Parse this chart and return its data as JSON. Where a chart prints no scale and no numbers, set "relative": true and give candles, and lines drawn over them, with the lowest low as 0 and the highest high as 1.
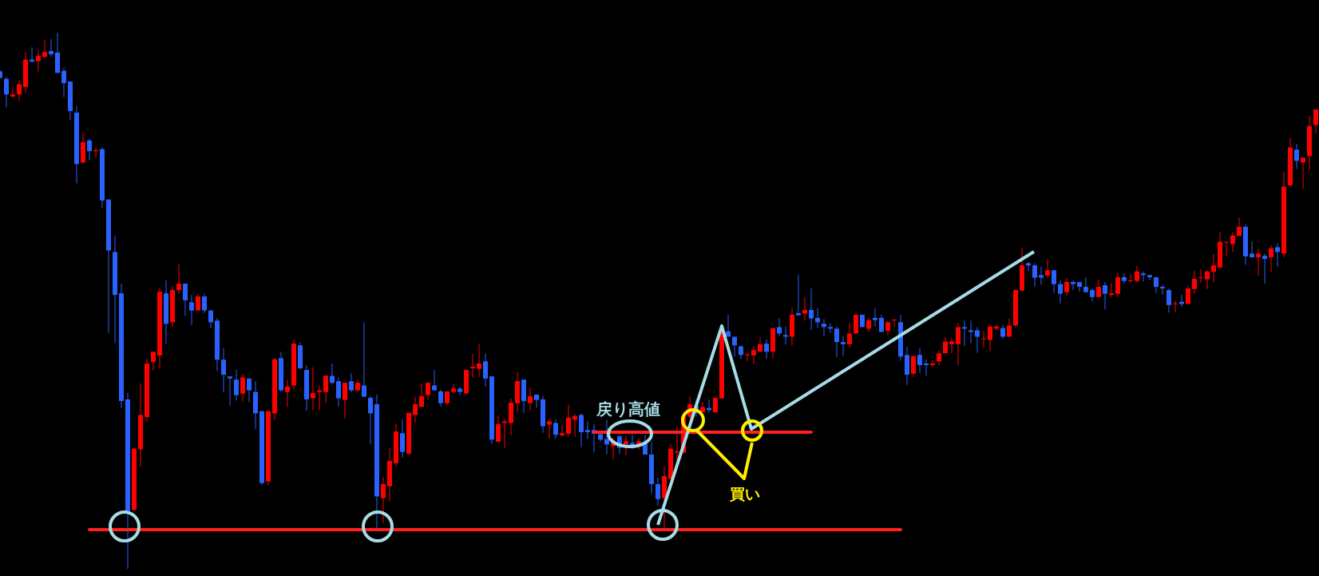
{
  "chart_data": {
    "type": "candlestick",
    "relative": true,
    "categories": [
      null,
      null,
      null,
      null,
      null,
      null,
      null,
      null,
      null,
      null,
      null,
      null,
      null,
      null,
      null,
      null,
      null,
      null,
      null,
      null,
      null,
      null,
      null,
      null,
      null,
      null,
      null,
      null,
      null,
      null,
      null,
      null,
      null,
      null,
      null,
      null,
      null,
      null,
      null,
      null,
      null,
      null,
      null,
      null,
      null,
      null,
      null,
      null,
      null,
      null,
      null,
      null,
      null,
      null,
      null,
      null,
      null,
      null,
      null,
      null,
      null,
      null,
      null,
      null,
      null,
      null,
      null,
      null,
      null,
      null,
      null,
      null,
      null,
      null,
      null,
      null,
      null,
      null,
      null,
      null,
      null,
      null,
      null,
      null,
      null,
      null,
      null,
      null,
      null,
      null,
      null,
      null,
      null,
      null,
      null,
      null,
      null,
      null,
      null,
      null,
      null,
      null,
      null,
      null,
      null,
      null,
      null,
      null,
      null,
      null,
      null,
      null,
      null,
      null,
      null,
      null,
      null,
      null,
      null,
      null,
      null,
      null,
      null,
      null,
      null,
      null,
      null,
      null,
      null,
      null,
      null,
      null,
      null,
      null,
      null,
      null,
      null,
      null,
      null,
      null,
      null,
      null,
      null,
      null,
      null,
      null,
      null,
      null,
      null,
      null,
      null,
      null,
      null,
      null,
      null,
      null,
      null,
      null,
      null,
      null,
      null,
      null,
      null,
      null,
      null,
      null,
      null,
      null,
      null,
      null,
      null,
      null,
      null,
      null,
      null,
      null,
      null,
      null,
      null,
      null,
      null,
      null,
      null,
      null,
      null,
      null,
      null,
      null,
      null,
      null,
      null,
      null,
      null,
      null,
      null,
      null,
      null,
      null,
      null,
      null,
      null,
      null,
      null,
      null,
      null,
      null,
      null
    ],
    "ohlc": [
      [
        0.928,
        0.931,
        0.914,
        0.916
      ],
      [
        0.914,
        0.918,
        0.861,
        0.885
      ],
      [
        0.881,
        0.899,
        0.879,
        0.885
      ],
      [
        0.885,
        0.912,
        0.873,
        0.904
      ],
      [
        0.899,
        0.964,
        0.888,
        0.95
      ],
      [
        0.95,
        0.973,
        0.945,
        0.946
      ],
      [
        0.947,
        0.968,
        0.928,
        0.957
      ],
      [
        0.955,
        0.986,
        0.953,
        0.964
      ],
      [
        0.966,
        0.988,
        0.955,
        0.96
      ],
      [
        0.963,
        1.0,
        0.925,
        0.925
      ],
      [
        0.929,
        0.935,
        0.88,
        0.906
      ],
      [
        0.909,
        0.909,
        0.837,
        0.854
      ],
      [
        0.851,
        0.863,
        0.719,
        0.755
      ],
      [
        0.758,
        0.813,
        0.755,
        0.796
      ],
      [
        0.799,
        0.802,
        0.762,
        0.779
      ],
      [
        0.779,
        0.785,
        0.767,
        0.781
      ],
      [
        0.783,
        0.786,
        0.673,
        0.687
      ],
      [
        0.689,
        0.689,
        0.44,
        0.594
      ],
      [
        0.591,
        0.621,
        0.421,
        0.511
      ],
      [
        0.514,
        0.532,
        0.3,
        0.313
      ],
      [
        0.316,
        0.328,
        0.0,
        0.108
      ],
      [
        0.11,
        0.225,
        0.108,
        0.224
      ],
      [
        0.223,
        0.346,
        0.191,
        0.287
      ],
      [
        0.283,
        0.392,
        0.274,
        0.383
      ],
      [
        0.386,
        0.405,
        0.37,
        0.405
      ],
      [
        0.398,
        0.524,
        0.373,
        0.517
      ],
      [
        0.514,
        0.538,
        0.42,
        0.457
      ],
      [
        0.46,
        0.527,
        0.451,
        0.52
      ],
      [
        0.52,
        0.568,
        0.513,
        0.532
      ],
      [
        0.532,
        0.532,
        0.472,
        0.501
      ],
      [
        0.497,
        0.511,
        0.455,
        0.482
      ],
      [
        0.482,
        0.513,
        0.482,
        0.508
      ],
      [
        0.508,
        0.513,
        0.477,
        0.482
      ],
      [
        0.482,
        0.482,
        0.449,
        0.46
      ],
      [
        0.463,
        0.468,
        0.369,
        0.39
      ],
      [
        0.39,
        0.412,
        0.329,
        0.362
      ],
      [
        0.359,
        0.359,
        0.304,
        0.355
      ],
      [
        0.353,
        0.371,
        0.314,
        0.324
      ],
      [
        0.327,
        0.364,
        0.313,
        0.357
      ],
      [
        0.355,
        0.355,
        0.311,
        0.333
      ],
      [
        0.33,
        0.35,
        0.261,
        0.29
      ],
      [
        0.294,
        0.294,
        0.156,
        0.16
      ],
      [
        0.163,
        0.295,
        0.156,
        0.294
      ],
      [
        0.29,
        0.393,
        0.278,
        0.391
      ],
      [
        0.393,
        0.405,
        0.329,
        0.333
      ],
      [
        0.33,
        0.352,
        0.302,
        0.34
      ],
      [
        0.342,
        0.427,
        0.335,
        0.42
      ],
      [
        0.417,
        0.422,
        0.372,
        0.374
      ],
      [
        0.371,
        0.379,
        0.295,
        0.316
      ],
      [
        0.318,
        0.376,
        0.296,
        0.328
      ],
      [
        0.33,
        0.342,
        0.296,
        0.333
      ],
      [
        0.33,
        0.362,
        0.309,
        0.36
      ],
      [
        0.36,
        0.383,
        0.344,
        0.347
      ],
      [
        0.35,
        0.357,
        0.303,
        0.318
      ],
      [
        0.315,
        0.348,
        0.281,
        0.347
      ],
      [
        0.35,
        0.365,
        0.329,
        0.333
      ],
      [
        0.333,
        0.352,
        0.33,
        0.347
      ],
      [
        0.342,
        0.46,
        0.321,
        0.321
      ],
      [
        0.319,
        0.322,
        0.233,
        0.29
      ],
      [
        0.307,
        0.325,
        0.076,
        0.135
      ],
      [
        0.132,
        0.171,
        0.085,
        0.158
      ],
      [
        0.154,
        0.225,
        0.126,
        0.201
      ],
      [
        0.197,
        0.271,
        0.191,
        0.256
      ],
      [
        0.253,
        0.279,
        0.208,
        0.218
      ],
      [
        0.215,
        0.291,
        0.212,
        0.291
      ],
      [
        0.287,
        0.321,
        0.272,
        0.307
      ],
      [
        0.302,
        0.345,
        0.302,
        0.322
      ],
      [
        0.324,
        0.348,
        0.315,
        0.347
      ],
      [
        0.342,
        0.371,
        0.332,
        0.333
      ],
      [
        0.331,
        0.334,
        0.303,
        0.309
      ],
      [
        0.309,
        0.331,
        0.306,
        0.331
      ],
      [
        0.33,
        0.345,
        0.327,
        0.336
      ],
      [
        0.336,
        0.34,
        0.323,
        0.33
      ],
      [
        0.327,
        0.372,
        0.327,
        0.371
      ],
      [
        0.374,
        0.401,
        0.356,
        0.377
      ],
      [
        0.373,
        0.419,
        0.358,
        0.383
      ],
      [
        0.387,
        0.402,
        0.34,
        0.355
      ],
      [
        0.359,
        0.359,
        0.233,
        0.241
      ],
      [
        0.237,
        0.286,
        0.237,
        0.27
      ],
      [
        0.272,
        0.28,
        0.226,
        0.275
      ],
      [
        0.272,
        0.318,
        0.249,
        0.31
      ],
      [
        0.309,
        0.367,
        0.293,
        0.35
      ],
      [
        0.353,
        0.353,
        0.291,
        0.313
      ],
      [
        0.309,
        0.338,
        0.296,
        0.322
      ],
      [
        0.325,
        0.325,
        0.3,
        0.315
      ],
      [
        0.316,
        0.322,
        0.254,
        0.266
      ],
      [
        0.269,
        0.28,
        0.243,
        0.275
      ],
      [
        0.272,
        0.278,
        0.243,
        0.25
      ],
      [
        0.249,
        0.268,
        0.247,
        0.253
      ],
      [
        0.252,
        0.306,
        0.247,
        0.282
      ],
      [
        0.278,
        0.289,
        0.246,
        0.285
      ],
      [
        0.287,
        0.29,
        0.227,
        0.255
      ],
      [
        0.259,
        0.275,
        0.242,
        0.255
      ],
      [
        0.259,
        0.27,
        0.217,
        0.252
      ],
      [
        0.251,
        0.256,
        0.237,
        0.241
      ],
      [
        0.242,
        0.278,
        0.214,
        0.232
      ],
      [
        0.229,
        0.244,
        0.204,
        0.237
      ],
      [
        0.247,
        0.25,
        0.214,
        0.226
      ],
      [
        0.232,
        0.248,
        0.212,
        0.238
      ],
      [
        0.235,
        0.25,
        0.223,
        0.229
      ],
      [
        0.233,
        0.243,
        0.222,
        0.238
      ],
      [
        0.237,
        0.25,
        0.213,
        0.213
      ],
      [
        0.213,
        0.237,
        0.14,
        0.158
      ],
      [
        0.158,
        0.17,
        0.118,
        0.13
      ],
      [
        0.132,
        0.191,
        0.077,
        0.173
      ],
      [
        0.168,
        0.232,
        0.167,
        0.224
      ],
      [
        0.217,
        0.266,
        0.202,
        0.219
      ],
      [
        0.217,
        0.292,
        0.214,
        0.286
      ],
      [
        0.284,
        0.321,
        0.281,
        0.307
      ],
      [
        0.304,
        0.316,
        0.284,
        0.291
      ],
      [
        0.292,
        0.312,
        0.291,
        0.302
      ],
      [
        0.3,
        0.316,
        0.291,
        0.296
      ],
      [
        0.292,
        0.32,
        0.29,
        0.319
      ],
      [
        0.318,
        0.443,
        0.318,
        0.443
      ],
      [
        0.443,
        0.474,
        0.433,
        0.433
      ],
      [
        0.433,
        0.433,
        0.396,
        0.417
      ],
      [
        0.415,
        0.417,
        0.391,
        0.399
      ],
      [
        0.399,
        0.403,
        0.387,
        0.4
      ],
      [
        0.398,
        0.416,
        0.382,
        0.408
      ],
      [
        0.405,
        0.432,
        0.405,
        0.419
      ],
      [
        0.42,
        0.428,
        0.392,
        0.405
      ],
      [
        0.405,
        0.449,
        0.392,
        0.449
      ],
      [
        0.451,
        0.468,
        0.434,
        0.439
      ],
      [
        0.436,
        0.452,
        0.418,
        0.433
      ],
      [
        0.433,
        0.488,
        0.417,
        0.474
      ],
      [
        0.477,
        0.549,
        0.472,
        0.473
      ],
      [
        0.476,
        0.507,
        0.463,
        0.483
      ],
      [
        0.483,
        0.523,
        0.446,
        0.467
      ],
      [
        0.468,
        0.486,
        0.449,
        0.46
      ],
      [
        0.457,
        0.466,
        0.434,
        0.451
      ],
      [
        0.451,
        0.458,
        0.44,
        0.448
      ],
      [
        0.448,
        0.452,
        0.395,
        0.423
      ],
      [
        0.423,
        0.434,
        0.397,
        0.419
      ],
      [
        0.419,
        0.459,
        0.413,
        0.439
      ],
      [
        0.439,
        0.475,
        0.439,
        0.474
      ],
      [
        0.474,
        0.474,
        0.45,
        0.451
      ],
      [
        0.448,
        0.469,
        0.442,
        0.464
      ],
      [
        0.468,
        0.486,
        0.452,
        0.464
      ],
      [
        0.468,
        0.474,
        0.442,
        0.442
      ],
      [
        0.444,
        0.463,
        0.436,
        0.46
      ],
      [
        0.464,
        0.466,
        0.451,
        0.465
      ],
      [
        0.46,
        0.474,
        0.388,
        0.396
      ],
      [
        0.399,
        0.414,
        0.343,
        0.362
      ],
      [
        0.364,
        0.398,
        0.358,
        0.397
      ],
      [
        0.399,
        0.412,
        0.366,
        0.38
      ],
      [
        0.383,
        0.391,
        0.36,
        0.38
      ],
      [
        0.38,
        0.39,
        0.377,
        0.383
      ],
      [
        0.387,
        0.407,
        0.38,
        0.402
      ],
      [
        0.402,
        0.432,
        0.402,
        0.424
      ],
      [
        0.419,
        0.43,
        0.402,
        0.424
      ],
      [
        0.419,
        0.459,
        0.38,
        0.451
      ],
      [
        0.451,
        0.463,
        0.416,
        0.448
      ],
      [
        0.445,
        0.463,
        0.421,
        0.442
      ],
      [
        0.445,
        0.451,
        0.403,
        0.433
      ],
      [
        0.429,
        0.444,
        0.413,
        0.43
      ],
      [
        0.427,
        0.454,
        0.406,
        0.452
      ],
      [
        0.448,
        0.456,
        0.445,
        0.452
      ],
      [
        0.449,
        0.454,
        0.429,
        0.433
      ],
      [
        0.433,
        0.467,
        0.433,
        0.454
      ],
      [
        0.454,
        0.521,
        0.451,
        0.52
      ],
      [
        0.519,
        0.599,
        0.516,
        0.566
      ],
      [
        0.57,
        0.572,
        0.555,
        0.566
      ],
      [
        0.566,
        0.57,
        0.526,
        0.543
      ],
      [
        0.548,
        0.564,
        0.53,
        0.543
      ],
      [
        0.547,
        0.577,
        0.543,
        0.557
      ],
      [
        0.557,
        0.558,
        0.515,
        0.531
      ],
      [
        0.531,
        0.538,
        0.495,
        0.513
      ],
      [
        0.516,
        0.542,
        0.51,
        0.535
      ],
      [
        0.535,
        0.538,
        0.52,
        0.531
      ],
      [
        0.535,
        0.535,
        0.517,
        0.526
      ],
      [
        0.526,
        0.544,
        0.516,
        0.516
      ],
      [
        0.52,
        0.523,
        0.499,
        0.507
      ],
      [
        0.507,
        0.54,
        0.507,
        0.526
      ],
      [
        0.529,
        0.535,
        0.484,
        0.513
      ],
      [
        0.511,
        0.533,
        0.507,
        0.514
      ],
      [
        0.513,
        0.553,
        0.507,
        0.544
      ],
      [
        0.544,
        0.551,
        0.532,
        0.537
      ],
      [
        0.537,
        0.55,
        0.534,
        0.538
      ],
      [
        0.537,
        0.565,
        0.534,
        0.555
      ],
      [
        0.551,
        0.555,
        0.536,
        0.548
      ],
      [
        0.548,
        0.548,
        0.539,
        0.544
      ],
      [
        0.544,
        0.544,
        0.515,
        0.526
      ],
      [
        0.526,
        0.53,
        0.512,
        0.523
      ],
      [
        0.52,
        0.523,
        0.478,
        0.492
      ],
      [
        0.494,
        0.5,
        0.479,
        0.495
      ],
      [
        0.498,
        0.511,
        0.489,
        0.494
      ],
      [
        0.494,
        0.528,
        0.494,
        0.523
      ],
      [
        0.522,
        0.556,
        0.513,
        0.541
      ],
      [
        0.543,
        0.559,
        0.534,
        0.544
      ],
      [
        0.54,
        0.556,
        0.522,
        0.555
      ],
      [
        0.554,
        0.587,
        0.534,
        0.566
      ],
      [
        0.562,
        0.628,
        0.562,
        0.61
      ],
      [
        0.609,
        0.61,
        0.583,
        0.61
      ],
      [
        0.606,
        0.628,
        0.591,
        0.622
      ],
      [
        0.621,
        0.655,
        0.621,
        0.638
      ],
      [
        0.638,
        0.642,
        0.567,
        0.583
      ],
      [
        0.588,
        0.61,
        0.581,
        0.581
      ],
      [
        0.581,
        0.597,
        0.547,
        0.588
      ],
      [
        0.584,
        0.588,
        0.532,
        0.578
      ],
      [
        0.581,
        0.603,
        0.554,
        0.598
      ],
      [
        0.6,
        0.607,
        0.564,
        0.591
      ],
      [
        0.588,
        0.741,
        0.581,
        0.713
      ],
      [
        0.715,
        0.804,
        0.715,
        0.786
      ],
      [
        0.782,
        0.793,
        0.746,
        0.761
      ],
      [
        0.758,
        0.767,
        0.709,
        0.767
      ],
      [
        0.77,
        0.844,
        0.745,
        0.826
      ],
      [
        0.828,
        0.857,
        0.813,
        0.857
      ]
    ],
    "colors": [
      "#2962ff",
      "#2962ff",
      "#ff0000",
      "#ff0000",
      "#ff0000",
      "#2962ff",
      "#ff0000",
      "#ff0000",
      "#2962ff",
      "#2962ff",
      "#2962ff",
      "#2962ff",
      "#2962ff",
      "#ff0000",
      "#2962ff",
      "#ff0000",
      "#2962ff",
      "#2962ff",
      "#2962ff",
      "#2962ff",
      "#2962ff",
      "#ff0000",
      "#ff0000",
      "#ff0000",
      "#ff0000",
      "#ff0000",
      "#2962ff",
      "#ff0000",
      "#ff0000",
      "#2962ff",
      "#2962ff",
      "#ff0000",
      "#2962ff",
      "#2962ff",
      "#2962ff",
      "#2962ff",
      "#2962ff",
      "#2962ff",
      "#ff0000",
      "#2962ff",
      "#2962ff",
      "#2962ff",
      "#ff0000",
      "#ff0000",
      "#2962ff",
      "#ff0000",
      "#ff0000",
      "#2962ff",
      "#2962ff",
      "#ff0000",
      "#ff0000",
      "#ff0000",
      "#2962ff",
      "#2962ff",
      "#ff0000",
      "#2962ff",
      "#ff0000",
      "#2962ff",
      "#2962ff",
      "#2962ff",
      "#ff0000",
      "#ff0000",
      "#ff0000",
      "#2962ff",
      "#ff0000",
      "#ff0000",
      "#ff0000",
      "#ff0000",
      "#2962ff",
      "#2962ff",
      "#ff0000",
      "#ff0000",
      "#2962ff",
      "#ff0000",
      "#ff0000",
      "#ff0000",
      "#2962ff",
      "#2962ff",
      "#ff0000",
      "#ff0000",
      "#ff0000",
      "#ff0000",
      "#2962ff",
      "#ff0000",
      "#2962ff",
      "#2962ff",
      "#ff0000",
      "#2962ff",
      "#ff0000",
      "#ff0000",
      "#ff0000",
      "#2962ff",
      "#2962ff",
      "#2962ff",
      "#2962ff",
      "#2962ff",
      "#ff0000",
      "#2962ff",
      "#ff0000",
      "#2962ff",
      "#ff0000",
      "#2962ff",
      "#2962ff",
      "#2962ff",
      "#ff0000",
      "#ff0000",
      "#ff0000",
      "#ff0000",
      "#ff0000",
      "#2962ff",
      "#ff0000",
      "#2962ff",
      "#ff0000",
      "#ff0000",
      "#2962ff",
      "#2962ff",
      "#2962ff",
      "#ff0000",
      "#ff0000",
      "#ff0000",
      "#2962ff",
      "#ff0000",
      "#2962ff",
      "#2962ff",
      "#ff0000",
      "#2962ff",
      "#ff0000",
      "#2962ff",
      "#2962ff",
      "#2962ff",
      "#2962ff",
      "#2962ff",
      "#2962ff",
      "#ff0000",
      "#ff0000",
      "#2962ff",
      "#ff0000",
      "#2962ff",
      "#2962ff",
      "#ff0000",
      "#ff0000",
      "#2962ff",
      "#2962ff",
      "#ff0000",
      "#2962ff",
      "#2962ff",
      "#ff0000",
      "#ff0000",
      "#ff0000",
      "#ff0000",
      "#ff0000",
      "#2962ff",
      "#2962ff",
      "#2962ff",
      "#ff0000",
      "#ff0000",
      "#ff0000",
      "#2962ff",
      "#ff0000",
      "#ff0000",
      "#ff0000",
      "#2962ff",
      "#2962ff",
      "#2962ff",
      "#ff0000",
      "#2962ff",
      "#2962ff",
      "#ff0000",
      "#2962ff",
      "#2962ff",
      "#2962ff",
      "#2962ff",
      "#ff0000",
      "#2962ff",
      "#ff0000",
      "#ff0000",
      "#2962ff",
      "#ff0000",
      "#ff0000",
      "#2962ff",
      "#2962ff",
      "#2962ff",
      "#2962ff",
      "#2962ff",
      "#ff0000",
      "#2962ff",
      "#ff0000",
      "#ff0000",
      "#ff0000",
      "#ff0000",
      "#ff0000",
      "#ff0000",
      "#ff0000",
      "#ff0000",
      "#ff0000",
      "#2962ff",
      "#2962ff",
      "#ff0000",
      "#2962ff",
      "#ff0000",
      "#2962ff",
      "#ff0000",
      "#ff0000",
      "#2962ff",
      "#ff0000",
      "#ff0000",
      "#ff0000"
    ],
    "ref_lines": [
      {
        "axis": "y",
        "value": 0.073,
        "color": "#ff2020"
      },
      {
        "axis": "y",
        "value": 0.255,
        "color": "#ff2020"
      }
    ],
    "annotations": [
      "戻り高値",
      "買い"
    ]
  }
}
